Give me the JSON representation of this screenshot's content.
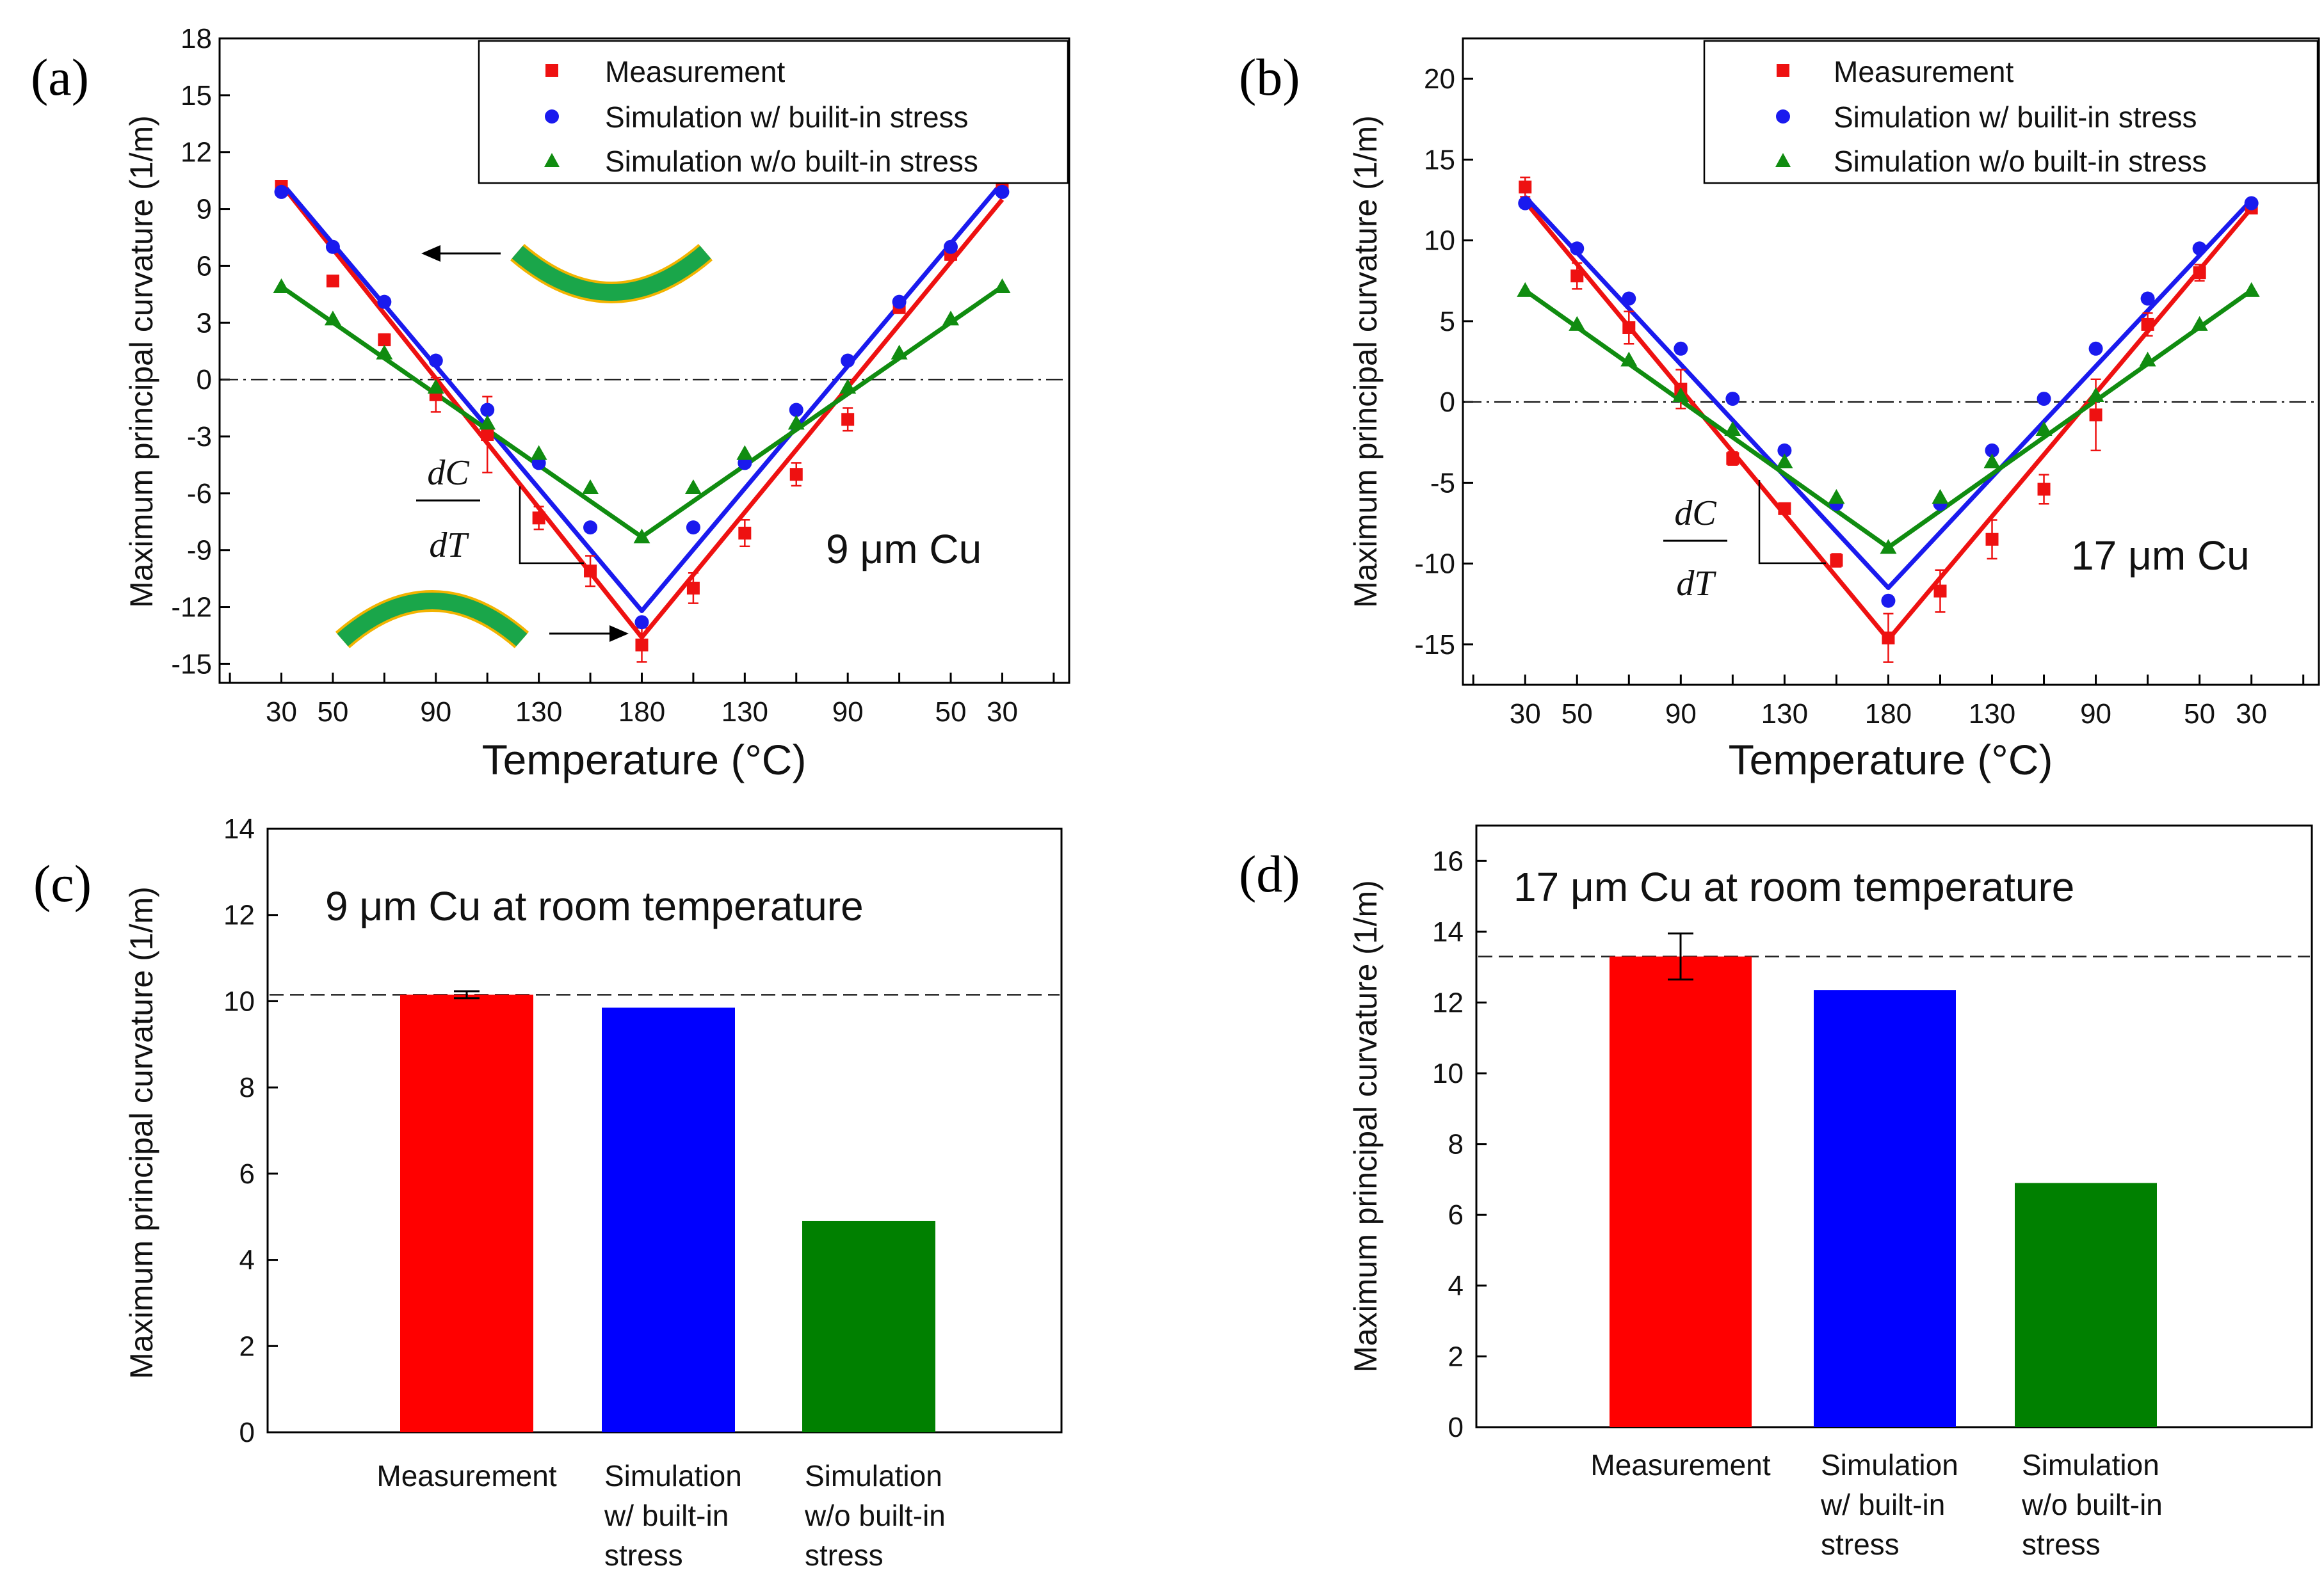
{
  "chart_data": [
    {
      "panel": "(a)",
      "type": "line",
      "title": "",
      "annotation": "9 μm Cu",
      "xlabel": "Temperature (°C)",
      "ylabel": "Maximum principal curvature  (1/m)",
      "ylim": [
        -16,
        18
      ],
      "yticks": [
        -15,
        -12,
        -9,
        -6,
        -3,
        0,
        3,
        6,
        9,
        12,
        15,
        18
      ],
      "x_positions": [
        1,
        2,
        3,
        4,
        5,
        6,
        7,
        8,
        9,
        10,
        11,
        12,
        13,
        14,
        15
      ],
      "x_tick_positions": [
        1,
        2,
        4,
        6,
        8,
        10,
        12,
        14,
        15
      ],
      "x_tick_labels": [
        "30",
        "50",
        "90",
        "130",
        "180",
        "130",
        "90",
        "50",
        "30"
      ],
      "xlim": [
        -0.2,
        16.3
      ],
      "slope_label": {
        "num": "dC",
        "den": "dT"
      },
      "legend": [
        "Measurement",
        "Simulation w/ builit-in stress",
        "Simulation w/o built-in stress"
      ],
      "series": [
        {
          "name": "Measurement",
          "color": "#ee1111",
          "marker": "square",
          "values": [
            10.2,
            5.2,
            2.1,
            -0.8,
            -2.9,
            -7.3,
            -10.1,
            -14.0,
            -11.0,
            -8.1,
            -5.0,
            -2.1,
            3.8,
            6.6,
            10.2
          ],
          "errors": [
            0.2,
            0.2,
            0.3,
            0.9,
            2.0,
            0.6,
            0.8,
            0.9,
            0.8,
            0.7,
            0.6,
            0.6,
            0.3,
            0.3,
            0.2
          ],
          "fit": [
            [
              1,
              10.3
            ],
            [
              8,
              -13.6
            ],
            [
              15,
              9.5
            ]
          ]
        },
        {
          "name": "Simulation w/ builit-in stress",
          "color": "#1a1aee",
          "marker": "circle",
          "values": [
            9.9,
            7.0,
            4.1,
            1.0,
            -1.6,
            -4.4,
            -7.8,
            -12.8,
            -7.8,
            -4.4,
            -1.6,
            1.0,
            4.1,
            7.0,
            9.9
          ],
          "fit": [
            [
              1,
              10.4
            ],
            [
              8,
              -12.2
            ],
            [
              15,
              10.4
            ]
          ]
        },
        {
          "name": "Simulation w/o built-in stress",
          "color": "#108c10",
          "marker": "triangle",
          "values": [
            4.9,
            3.2,
            1.4,
            -0.4,
            -2.3,
            -3.9,
            -5.7,
            -8.3,
            -5.7,
            -3.9,
            -2.3,
            -0.4,
            1.4,
            3.2,
            4.9
          ],
          "fit": [
            [
              1,
              4.9
            ],
            [
              8,
              -8.3
            ],
            [
              15,
              4.9
            ]
          ]
        }
      ]
    },
    {
      "panel": "(b)",
      "type": "line",
      "title": "",
      "annotation": "17 μm Cu",
      "xlabel": "Temperature (°C)",
      "ylabel": "Maximum principal curvature  (1/m)",
      "ylim": [
        -17.5,
        22.5
      ],
      "yticks": [
        -15,
        -10,
        -5,
        0,
        5,
        10,
        15,
        20
      ],
      "x_positions": [
        1,
        2,
        3,
        4,
        5,
        6,
        7,
        8,
        9,
        10,
        11,
        12,
        13,
        14,
        15
      ],
      "x_tick_positions": [
        1,
        2,
        4,
        6,
        8,
        10,
        12,
        14,
        15
      ],
      "x_tick_labels": [
        "30",
        "50",
        "90",
        "130",
        "180",
        "130",
        "90",
        "50",
        "30"
      ],
      "xlim": [
        -0.2,
        16.3
      ],
      "slope_label": {
        "num": "dC",
        "den": "dT"
      },
      "legend": [
        "Measurement",
        "Simulation w/ builit-in stress",
        "Simulation w/o built-in stress"
      ],
      "series": [
        {
          "name": "Measurement",
          "color": "#ee1111",
          "marker": "square",
          "values": [
            13.3,
            7.8,
            4.6,
            0.8,
            -3.5,
            -6.6,
            -9.8,
            -14.6,
            -11.7,
            -8.5,
            -5.4,
            -0.8,
            4.8,
            8.0,
            12.0
          ],
          "errors": [
            0.6,
            0.8,
            1.0,
            1.2,
            0.4,
            0.3,
            0.4,
            1.5,
            1.3,
            1.2,
            0.9,
            2.2,
            0.7,
            0.5,
            0.3
          ],
          "fit": [
            [
              1,
              12.4
            ],
            [
              8,
              -14.7
            ],
            [
              15,
              12.0
            ]
          ]
        },
        {
          "name": "Simulation w/ builit-in stress",
          "color": "#1a1aee",
          "marker": "circle",
          "values": [
            12.3,
            9.5,
            6.4,
            3.3,
            0.2,
            -3.0,
            -6.3,
            -12.3,
            -6.3,
            -3.0,
            0.2,
            3.3,
            6.4,
            9.5,
            12.3
          ],
          "fit": [
            [
              1,
              12.7
            ],
            [
              8,
              -11.5
            ],
            [
              15,
              12.5
            ]
          ]
        },
        {
          "name": "Simulation w/o built-in stress",
          "color": "#108c10",
          "marker": "triangle",
          "values": [
            6.9,
            4.8,
            2.6,
            0.4,
            -1.7,
            -3.7,
            -5.9,
            -9.0,
            -5.9,
            -3.7,
            -1.7,
            0.4,
            2.6,
            4.8,
            6.9
          ],
          "fit": [
            [
              1,
              6.9
            ],
            [
              8,
              -9.0
            ],
            [
              15,
              6.9
            ]
          ]
        }
      ]
    },
    {
      "panel": "(c)",
      "type": "bar",
      "title": "9 μm Cu at room temperature",
      "xlabel": "",
      "ylabel": "Maximum principal curvature  (1/m)",
      "ylim": [
        0,
        14
      ],
      "yticks": [
        0,
        2,
        4,
        6,
        8,
        10,
        12,
        14
      ],
      "categories": [
        [
          "Measurement"
        ],
        [
          "Simulation",
          "w/ built-in",
          "stress"
        ],
        [
          "Simulation",
          "w/o built-in",
          "stress"
        ]
      ],
      "values": [
        10.15,
        9.85,
        4.9
      ],
      "errors": [
        0.08,
        0,
        0
      ],
      "colors": [
        "#ff0000",
        "#0000ff",
        "#008000"
      ],
      "reference_line": 10.15
    },
    {
      "panel": "(d)",
      "type": "bar",
      "title": "17 μm Cu at room temperature",
      "xlabel": "",
      "ylabel": "Maximum principal curvature  (1/m)",
      "ylim": [
        0,
        17
      ],
      "yticks": [
        0,
        2,
        4,
        6,
        8,
        10,
        12,
        14,
        16
      ],
      "categories": [
        [
          "Measurement"
        ],
        [
          "Simulation",
          "w/ built-in",
          "stress"
        ],
        [
          "Simulation",
          "w/o built-in",
          "stress"
        ]
      ],
      "values": [
        13.3,
        12.35,
        6.9
      ],
      "errors": [
        0.65,
        0,
        0
      ],
      "colors": [
        "#ff0000",
        "#0000ff",
        "#008000"
      ],
      "reference_line": 13.3
    }
  ]
}
